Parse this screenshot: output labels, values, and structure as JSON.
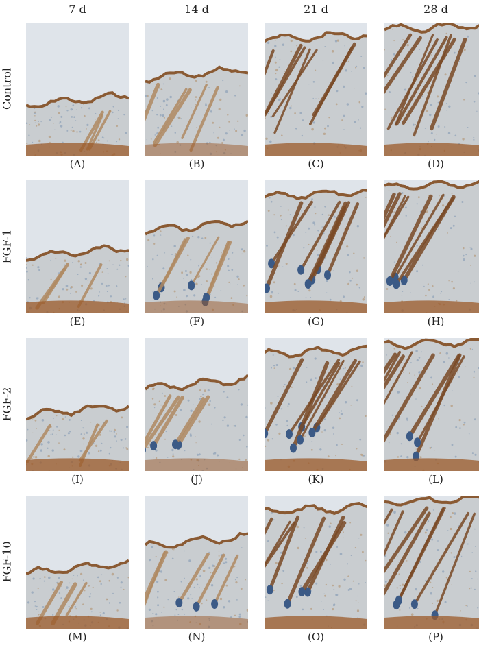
{
  "columns": [
    "7 d",
    "14 d",
    "21 d",
    "28 d"
  ],
  "rows": [
    {
      "label": "Control",
      "panels": [
        "(A)",
        "(B)",
        "(C)",
        "(D)"
      ]
    },
    {
      "label": "FGF-1",
      "panels": [
        "(E)",
        "(F)",
        "(G)",
        "(H)"
      ]
    },
    {
      "label": "FGF-2",
      "panels": [
        "(I)",
        "(J)",
        "(K)",
        "(L)"
      ]
    },
    {
      "label": "FGF-10",
      "panels": [
        "(M)",
        "(N)",
        "(O)",
        "(P)"
      ]
    }
  ],
  "colors": {
    "background_slide": "#dfe4ea",
    "dermis": "#c9cdd0",
    "epidermis_stain": "#8a5a33",
    "follicle_brown": "#7a4a26",
    "follicle_blue": "#3b5a86",
    "muscle": "#9b5a2a"
  }
}
